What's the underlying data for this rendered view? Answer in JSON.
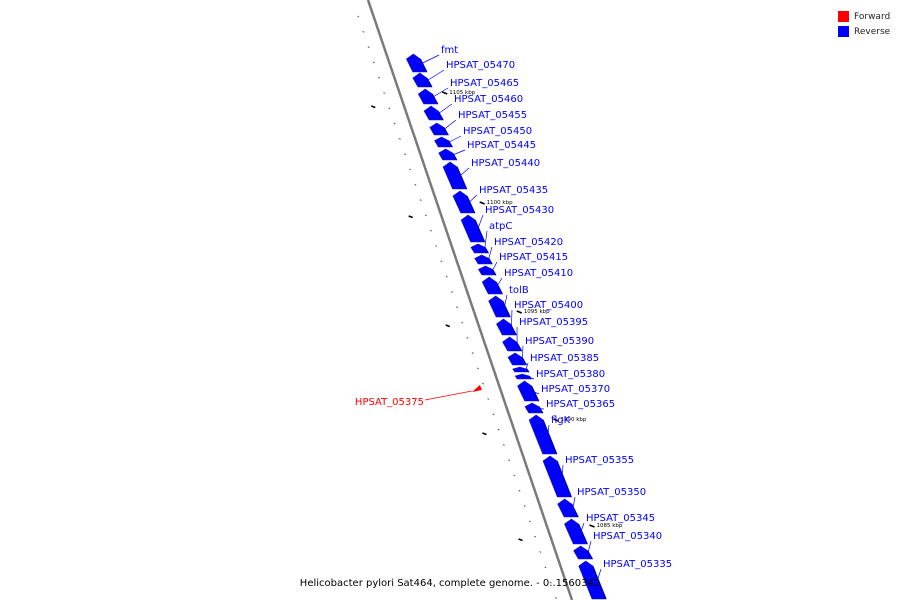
{
  "legend": {
    "forward_label": "Forward",
    "reverse_label": "Reverse",
    "forward_color": "#ff0000",
    "reverse_color": "#0000ff"
  },
  "caption": "Helicobacter pylori Sat464, complete genome. - 0..1560342",
  "ticks": [
    "1105 kbp",
    "1100 kbp",
    "1095 kbp",
    "1090 kbp",
    "1085 kbp"
  ],
  "genes": [
    {
      "name": "fmt",
      "strand": "reverse"
    },
    {
      "name": "HPSAT_05470",
      "strand": "reverse"
    },
    {
      "name": "HPSAT_05465",
      "strand": "reverse"
    },
    {
      "name": "HPSAT_05460",
      "strand": "reverse"
    },
    {
      "name": "HPSAT_05455",
      "strand": "reverse"
    },
    {
      "name": "HPSAT_05450",
      "strand": "reverse"
    },
    {
      "name": "HPSAT_05445",
      "strand": "reverse"
    },
    {
      "name": "HPSAT_05440",
      "strand": "reverse"
    },
    {
      "name": "HPSAT_05435",
      "strand": "reverse"
    },
    {
      "name": "HPSAT_05430",
      "strand": "reverse"
    },
    {
      "name": "atpC",
      "strand": "reverse"
    },
    {
      "name": "HPSAT_05420",
      "strand": "reverse"
    },
    {
      "name": "HPSAT_05415",
      "strand": "reverse"
    },
    {
      "name": "HPSAT_05410",
      "strand": "reverse"
    },
    {
      "name": "tolB",
      "strand": "reverse"
    },
    {
      "name": "HPSAT_05400",
      "strand": "reverse"
    },
    {
      "name": "HPSAT_05395",
      "strand": "reverse"
    },
    {
      "name": "HPSAT_05390",
      "strand": "reverse"
    },
    {
      "name": "HPSAT_05385",
      "strand": "reverse"
    },
    {
      "name": "HPSAT_05380",
      "strand": "reverse"
    },
    {
      "name": "HPSAT_05375",
      "strand": "forward"
    },
    {
      "name": "HPSAT_05370",
      "strand": "reverse"
    },
    {
      "name": "HPSAT_05365",
      "strand": "reverse"
    },
    {
      "name": "flgK",
      "strand": "reverse"
    },
    {
      "name": "HPSAT_05355",
      "strand": "reverse"
    },
    {
      "name": "HPSAT_05350",
      "strand": "reverse"
    },
    {
      "name": "HPSAT_05345",
      "strand": "reverse"
    },
    {
      "name": "HPSAT_05340",
      "strand": "reverse"
    },
    {
      "name": "HPSAT_05335",
      "strand": "reverse"
    }
  ]
}
